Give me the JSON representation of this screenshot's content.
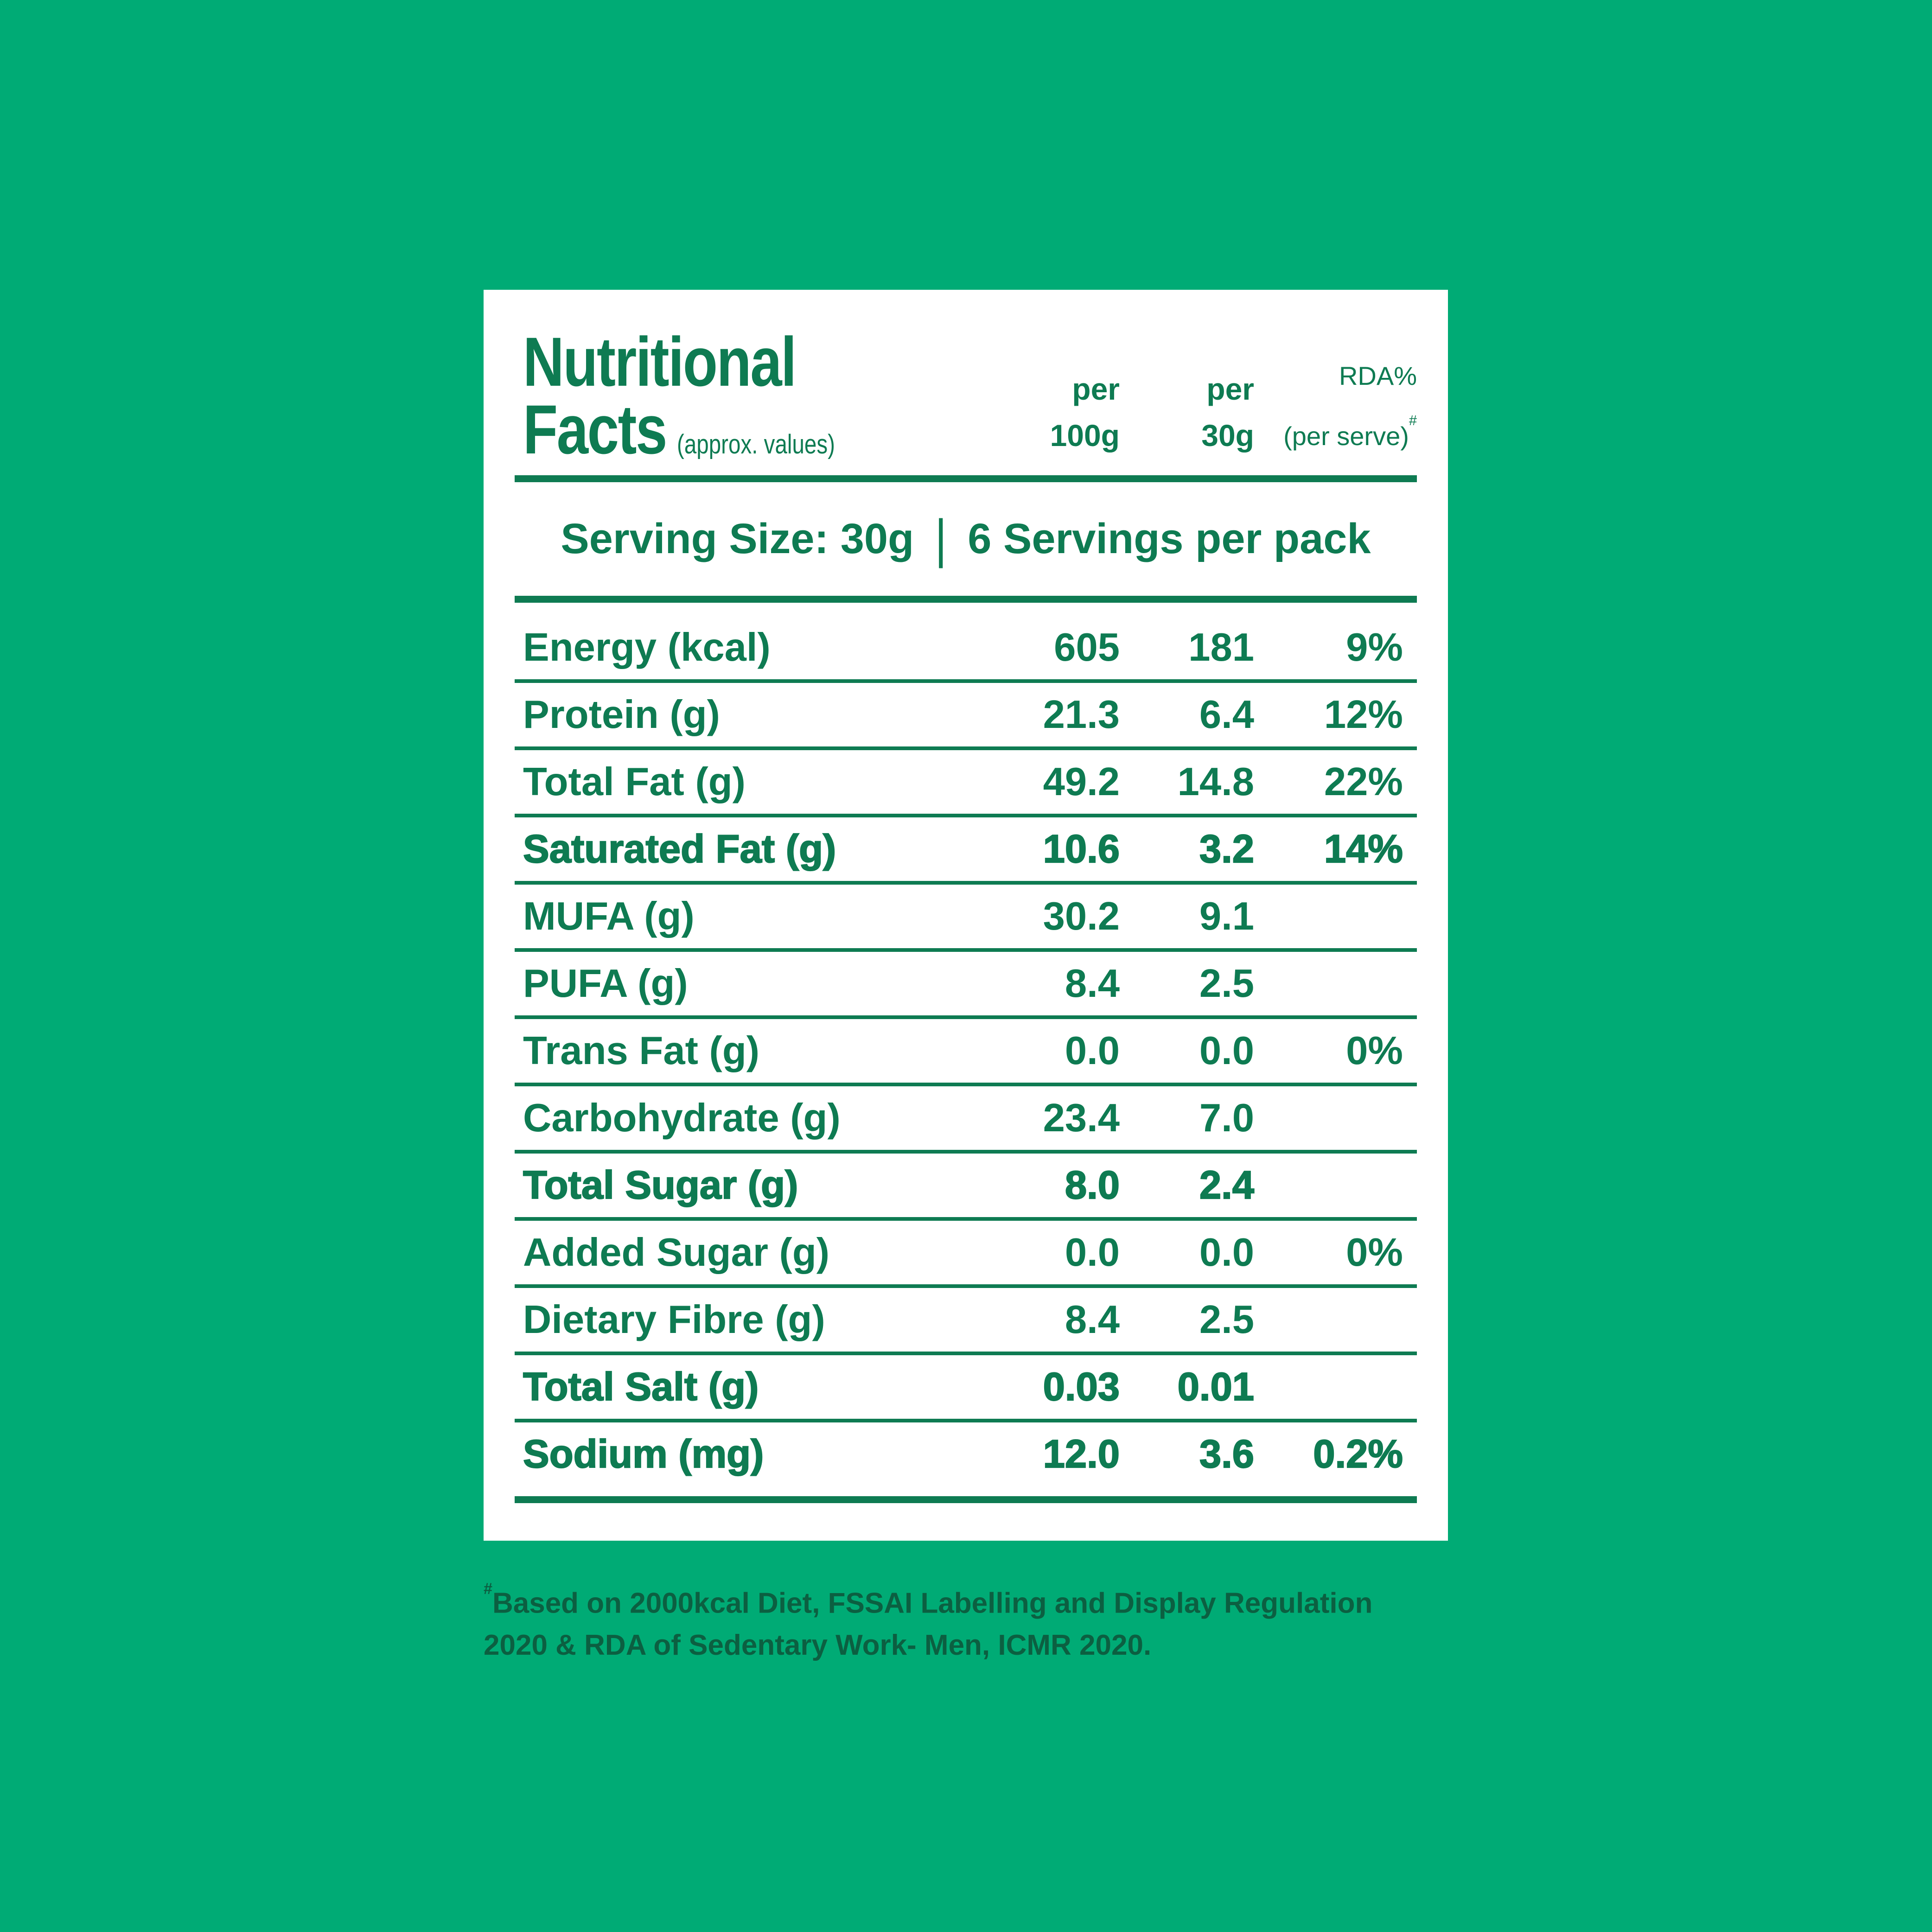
{
  "colors": {
    "background": "#00ab75",
    "card": "#ffffff",
    "accent": "#0e7b52",
    "footer_text": "#0c5f41"
  },
  "header": {
    "title_line1": "Nutritional",
    "title_line2": "Facts",
    "title_note": "(approx. values)",
    "columns": [
      {
        "line1": "per",
        "line2": "100g"
      },
      {
        "line1": "per",
        "line2": "30g"
      },
      {
        "line1": "RDA%",
        "line2": "(per serve)",
        "marker": "#"
      }
    ]
  },
  "serving": {
    "size_label": "Serving Size: 30g",
    "divider": "|",
    "pack_label": "6 Servings per pack"
  },
  "table": {
    "rows": [
      {
        "label": "Energy (kcal)",
        "per100": "605",
        "per30": "181",
        "rda": "9%",
        "heavy": false
      },
      {
        "label": "Protein (g)",
        "per100": "21.3",
        "per30": "6.4",
        "rda": "12%",
        "heavy": false
      },
      {
        "label": "Total Fat (g)",
        "per100": "49.2",
        "per30": "14.8",
        "rda": "22%",
        "heavy": false
      },
      {
        "label": "Saturated Fat (g)",
        "per100": "10.6",
        "per30": "3.2",
        "rda": "14%",
        "heavy": true
      },
      {
        "label": "MUFA (g)",
        "per100": "30.2",
        "per30": "9.1",
        "rda": "",
        "heavy": false
      },
      {
        "label": "PUFA (g)",
        "per100": "8.4",
        "per30": "2.5",
        "rda": "",
        "heavy": false
      },
      {
        "label": "Trans Fat (g)",
        "per100": "0.0",
        "per30": "0.0",
        "rda": "0%",
        "heavy": false
      },
      {
        "label": "Carbohydrate (g)",
        "per100": "23.4",
        "per30": "7.0",
        "rda": "",
        "heavy": false
      },
      {
        "label": "Total Sugar (g)",
        "per100": "8.0",
        "per30": "2.4",
        "rda": "",
        "heavy": true
      },
      {
        "label": "Added Sugar (g)",
        "per100": "0.0",
        "per30": "0.0",
        "rda": "0%",
        "heavy": false
      },
      {
        "label": "Dietary Fibre (g)",
        "per100": "8.4",
        "per30": "2.5",
        "rda": "",
        "heavy": false
      },
      {
        "label": "Total Salt (g)",
        "per100": "0.03",
        "per30": "0.01",
        "rda": "",
        "heavy": true
      },
      {
        "label": "Sodium (mg)",
        "per100": "12.0",
        "per30": "3.6",
        "rda": "0.2%",
        "heavy": true
      }
    ]
  },
  "footer": {
    "marker": "#",
    "line1": "Based on 2000kcal Diet, FSSAI Labelling and Display Regulation",
    "line2": "2020 & RDA of Sedentary Work- Men, ICMR 2020."
  }
}
